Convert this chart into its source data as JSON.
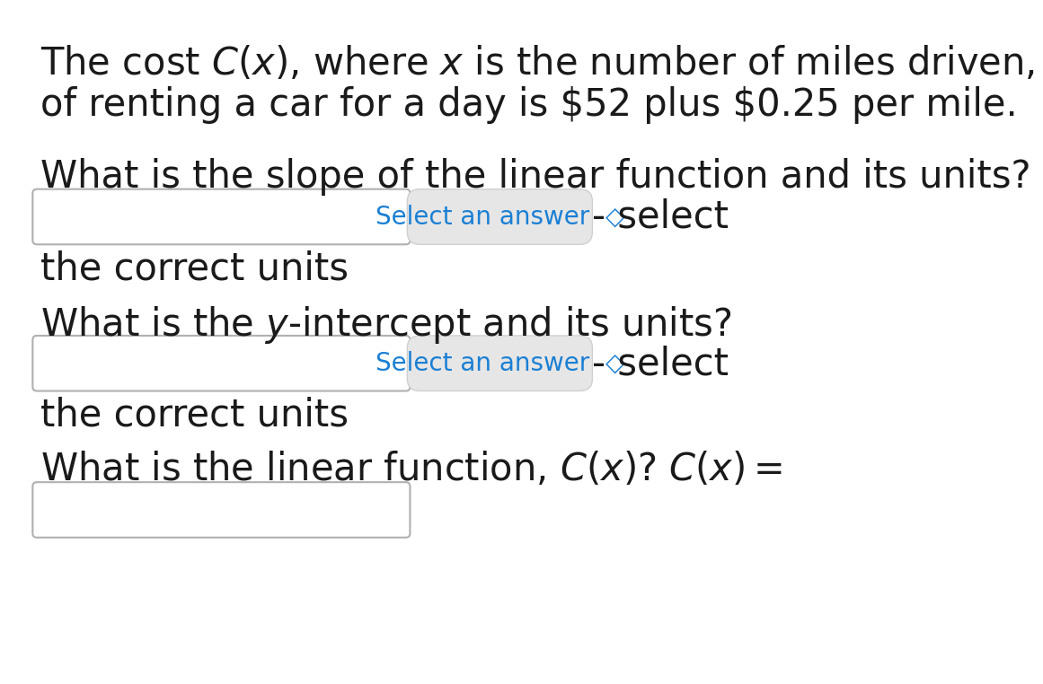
{
  "background_color": "#ffffff",
  "text_color": "#1a1a1a",
  "blue_color": "#1a7fd4",
  "box_border_color": "#b0b0b0",
  "dropdown_bg": "#e6e6e6",
  "dropdown_border": "#c8c8c8",
  "main_fontsize": 30,
  "drop_fontsize": 20,
  "select_fontsize": 30,
  "correct_units_fontsize": 30,
  "line1": "The cost $C(x)$, where $x$ is the number of miles driven,",
  "line2": "of renting a car for a day is \\$52 plus \\$0.25 per mile.",
  "q1": "What is the slope of the linear function and its units?",
  "q2": "What is the $y$-intercept and its units?",
  "q3": "What is the linear function, $C(x)$? $C(x) =$",
  "dropdown_text": "Select an answer  ◆",
  "select_text": "- select",
  "correct_units": "the correct units"
}
